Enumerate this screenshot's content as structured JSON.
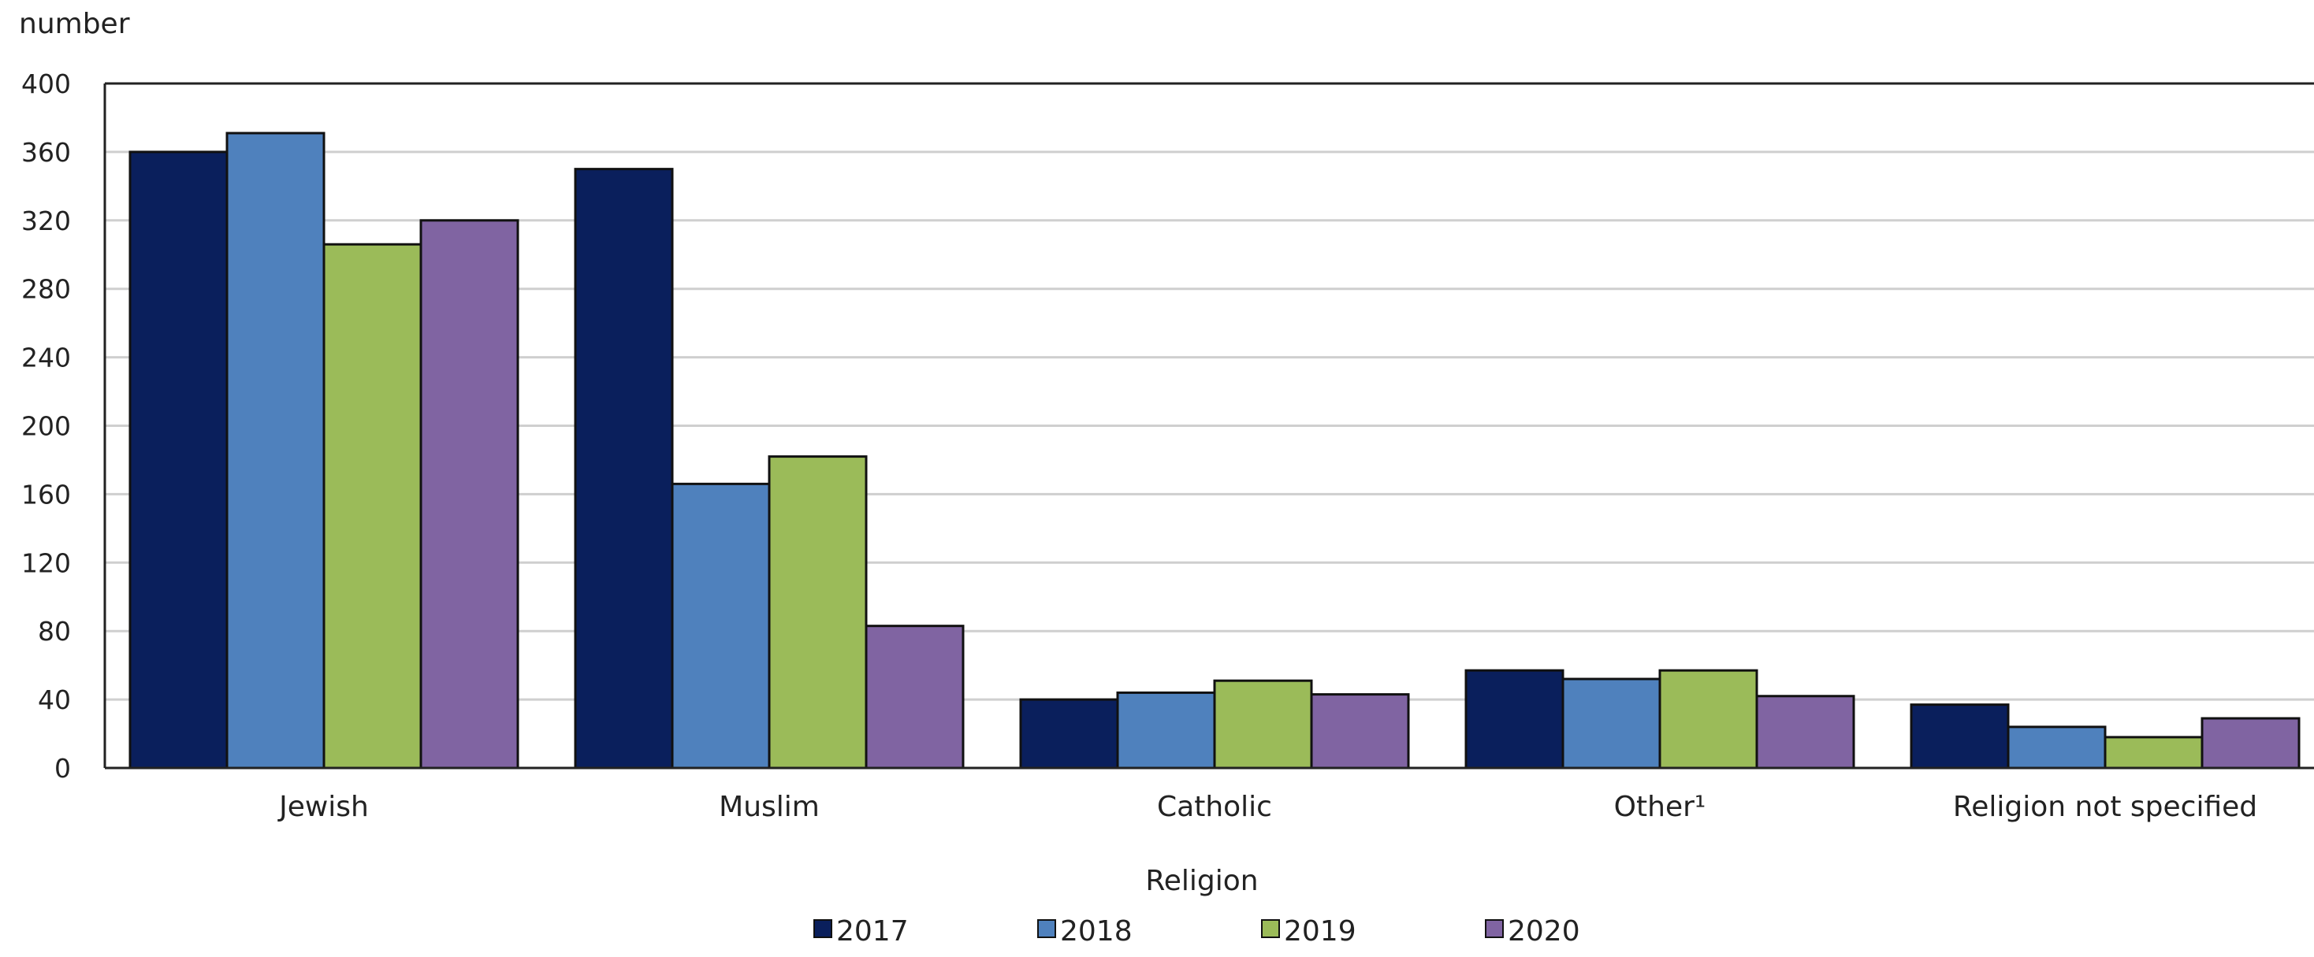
{
  "chart_data": {
    "type": "bar",
    "title": "",
    "ylabel": "number",
    "xlabel": "Religion",
    "ylim": [
      0,
      400
    ],
    "yticks": [
      0,
      40,
      80,
      120,
      160,
      200,
      240,
      280,
      320,
      360,
      400
    ],
    "grid": true,
    "legend_position": "bottom",
    "categories": [
      "Jewish",
      "Muslim",
      "Catholic",
      "Other¹",
      "Religion not specified"
    ],
    "series": [
      {
        "name": "2017",
        "color": "#0a1f5c",
        "values": [
          360,
          350,
          40,
          57,
          37
        ]
      },
      {
        "name": "2018",
        "color": "#4f81bd",
        "values": [
          371,
          166,
          44,
          52,
          24
        ]
      },
      {
        "name": "2019",
        "color": "#9bbb59",
        "values": [
          306,
          182,
          51,
          57,
          18
        ]
      },
      {
        "name": "2020",
        "color": "#8064a2",
        "values": [
          320,
          83,
          43,
          42,
          29
        ]
      }
    ]
  }
}
